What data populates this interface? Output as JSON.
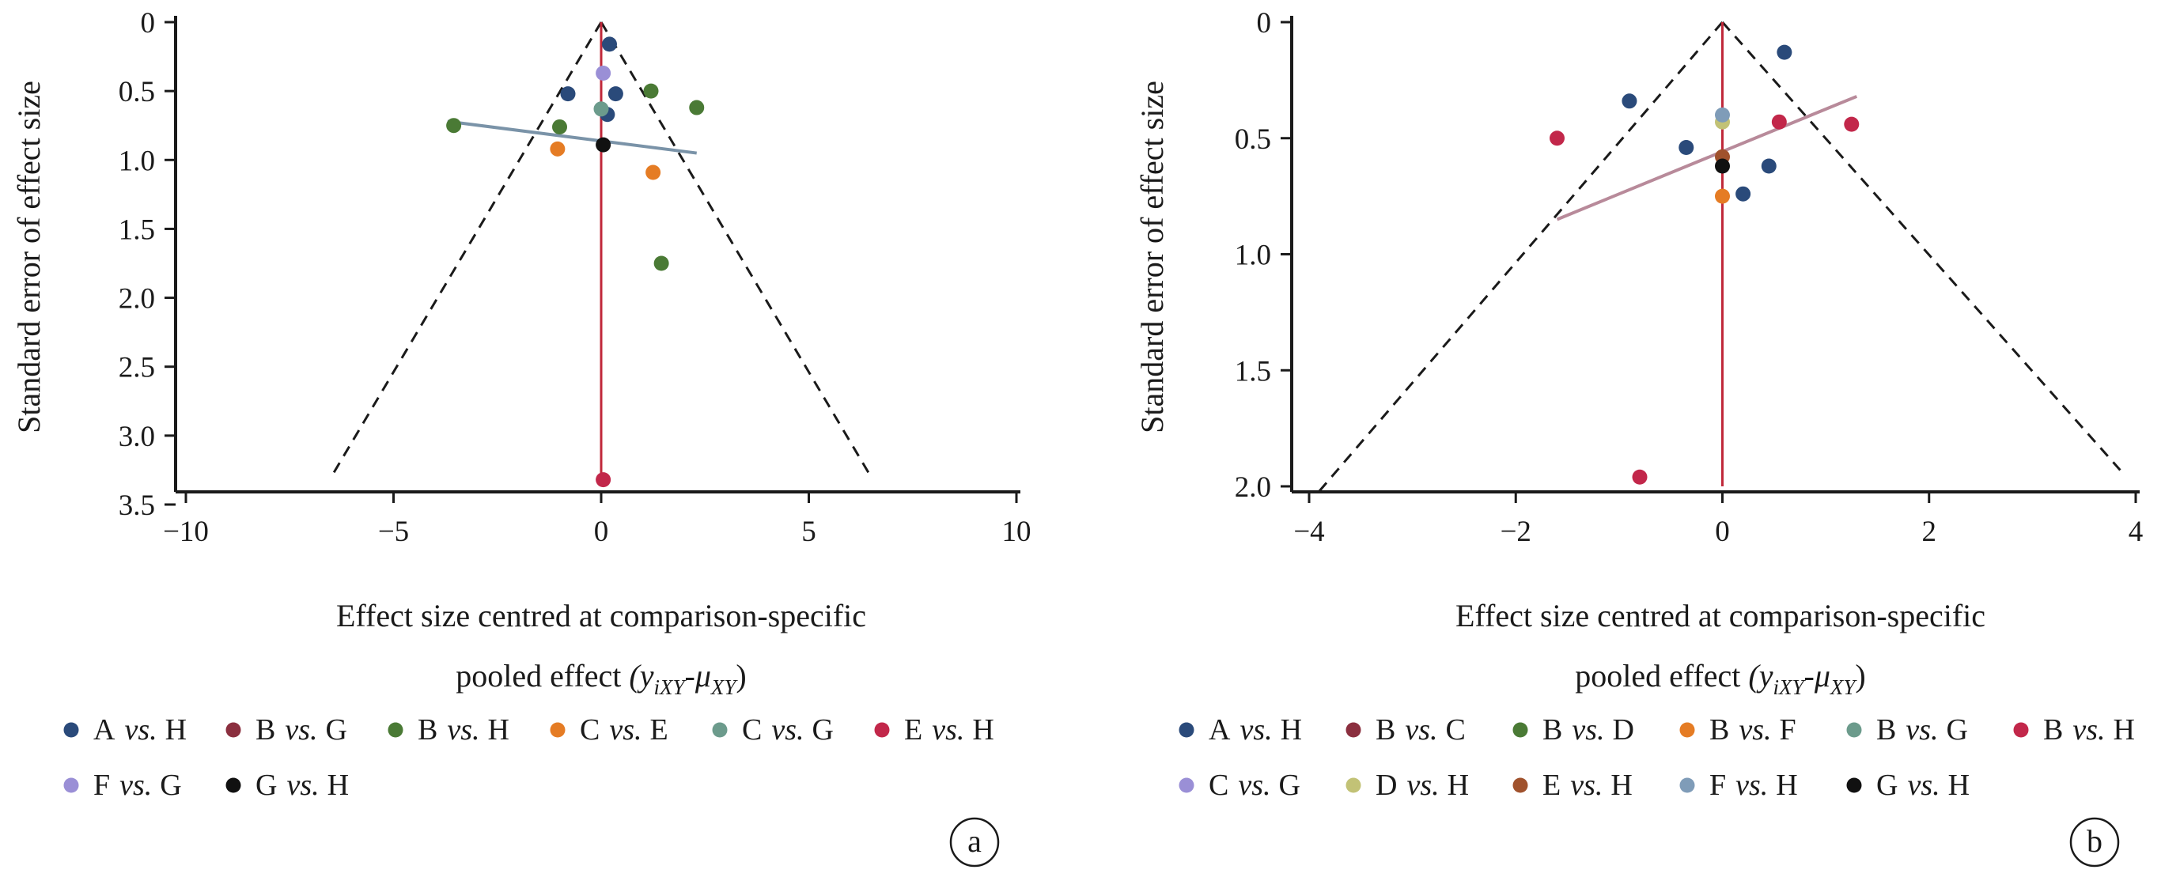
{
  "chart_data": [
    {
      "id": "a",
      "type": "scatter",
      "panel_label": "a",
      "ylabel": "Standard error of effect size",
      "xlabel_line1": "Effect size centred at comparison-specific",
      "xlabel_line2_pre": "pooled effect",
      "xlabel_formula": "(y",
      "xlabel_sub1": "iXY",
      "xlabel_mid": "-μ",
      "xlabel_sub2": "XY",
      "xlabel_close": ")",
      "xlim": [
        -10,
        10
      ],
      "ylim": [
        0,
        3.5
      ],
      "y_reversed": true,
      "xticks": [
        -10,
        -5,
        0,
        5,
        10
      ],
      "xtick_labels": [
        "−10",
        "−5",
        "0",
        "5",
        "10"
      ],
      "yticks": [
        0,
        0.5,
        1.0,
        1.5,
        2.0,
        2.5,
        3.0,
        3.5
      ],
      "ytick_labels": [
        "0",
        "0.5",
        "1.0",
        "1.5",
        "2.0",
        "2.5",
        "3.0",
        "3.5"
      ],
      "funnel": {
        "apex": [
          0,
          0
        ],
        "left": [
          -6.5,
          3.3
        ],
        "right": [
          6.5,
          3.3
        ]
      },
      "center_line": {
        "x": 0,
        "y": [
          0,
          3.3
        ],
        "color": "#c0283a"
      },
      "regression_line": {
        "x1": -3.7,
        "y1": 0.72,
        "x2": 2.3,
        "y2": 0.95,
        "color": "#7a93a8"
      },
      "series": [
        {
          "name": "A",
          "sep": "vs.",
          "name2": "H",
          "color": "#2a4a7a",
          "points": [
            [
              0.2,
              0.16
            ],
            [
              -0.8,
              0.52
            ],
            [
              0.35,
              0.52
            ],
            [
              0.15,
              0.67
            ]
          ]
        },
        {
          "name": "B",
          "sep": "vs.",
          "name2": "G",
          "color": "#8b2f3f",
          "points": []
        },
        {
          "name": "B",
          "sep": "vs.",
          "name2": "H",
          "color": "#4a7a35",
          "points": [
            [
              1.2,
              0.5
            ],
            [
              2.3,
              0.62
            ],
            [
              -1.0,
              0.76
            ],
            [
              -3.55,
              0.75
            ],
            [
              1.45,
              1.75
            ]
          ]
        },
        {
          "name": "C",
          "sep": "vs.",
          "name2": "E",
          "color": "#e57c24",
          "points": [
            [
              -1.05,
              0.92
            ],
            [
              1.25,
              1.09
            ]
          ]
        },
        {
          "name": "C",
          "sep": "vs.",
          "name2": "G",
          "color": "#6c9b8c",
          "points": [
            [
              0.0,
              0.63
            ]
          ]
        },
        {
          "name": "E",
          "sep": "vs.",
          "name2": "H",
          "color": "#c2274a",
          "points": [
            [
              0.05,
              3.32
            ]
          ]
        },
        {
          "name": "F",
          "sep": "vs.",
          "name2": "G",
          "color": "#9a8fd6",
          "points": [
            [
              0.05,
              0.37
            ]
          ]
        },
        {
          "name": "G",
          "sep": "vs.",
          "name2": "H",
          "color": "#111111",
          "points": [
            [
              0.05,
              0.89
            ]
          ]
        }
      ]
    },
    {
      "id": "b",
      "type": "scatter",
      "panel_label": "b",
      "ylabel": "Standard error of effect size",
      "xlabel_line1": "Effect size centred at comparison-specific",
      "xlabel_line2_pre": "pooled effect",
      "xlabel_formula": "(y",
      "xlabel_sub1": "iXY",
      "xlabel_mid": "-μ",
      "xlabel_sub2": "XY",
      "xlabel_close": ")",
      "xlim": [
        -4,
        4
      ],
      "ylim": [
        0,
        2.0
      ],
      "y_reversed": true,
      "xticks": [
        -4,
        -2,
        0,
        2,
        4
      ],
      "xtick_labels": [
        "−4",
        "−2",
        "0",
        "2",
        "4"
      ],
      "yticks": [
        0,
        0.5,
        1.0,
        1.5,
        2.0
      ],
      "ytick_labels": [
        "0",
        "0.5",
        "1.0",
        "1.5",
        "2.0"
      ],
      "funnel": {
        "apex": [
          0,
          0
        ],
        "left": [
          -3.9,
          2.02
        ],
        "right": [
          3.85,
          1.93
        ]
      },
      "center_line": {
        "x": 0,
        "y": [
          0,
          2.0
        ],
        "color": "#c0283a"
      },
      "regression_line": {
        "x1": -1.6,
        "y1": 0.85,
        "x2": 1.3,
        "y2": 0.32,
        "color": "#b88a9a"
      },
      "series": [
        {
          "name": "A",
          "sep": "vs.",
          "name2": "H",
          "color": "#2a4a7a",
          "points": [
            [
              0.6,
              0.13
            ],
            [
              -0.9,
              0.34
            ],
            [
              -0.35,
              0.54
            ],
            [
              0.45,
              0.62
            ],
            [
              0.2,
              0.74
            ]
          ]
        },
        {
          "name": "B",
          "sep": "vs.",
          "name2": "C",
          "color": "#8b2f3f",
          "points": []
        },
        {
          "name": "B",
          "sep": "vs.",
          "name2": "D",
          "color": "#4a7a35",
          "points": []
        },
        {
          "name": "B",
          "sep": "vs.",
          "name2": "F",
          "color": "#e57c24",
          "points": [
            [
              0.0,
              0.75
            ]
          ]
        },
        {
          "name": "B",
          "sep": "vs.",
          "name2": "G",
          "color": "#6c9b8c",
          "points": []
        },
        {
          "name": "B",
          "sep": "vs.",
          "name2": "H",
          "color": "#c2274a",
          "points": [
            [
              -1.6,
              0.5
            ],
            [
              0.55,
              0.43
            ],
            [
              1.25,
              0.44
            ],
            [
              -0.8,
              1.96
            ]
          ]
        },
        {
          "name": "C",
          "sep": "vs.",
          "name2": "G",
          "color": "#9a8fd6",
          "points": []
        },
        {
          "name": "D",
          "sep": "vs.",
          "name2": "H",
          "color": "#c2c276",
          "points": [
            [
              0.0,
              0.43
            ]
          ]
        },
        {
          "name": "E",
          "sep": "vs.",
          "name2": "H",
          "color": "#a0522d",
          "points": [
            [
              0.0,
              0.58
            ]
          ]
        },
        {
          "name": "F",
          "sep": "vs.",
          "name2": "H",
          "color": "#7f9cb8",
          "points": [
            [
              0.0,
              0.4
            ]
          ]
        },
        {
          "name": "G",
          "sep": "vs.",
          "name2": "H",
          "color": "#111111",
          "points": [
            [
              0.0,
              0.62
            ]
          ]
        }
      ]
    }
  ]
}
